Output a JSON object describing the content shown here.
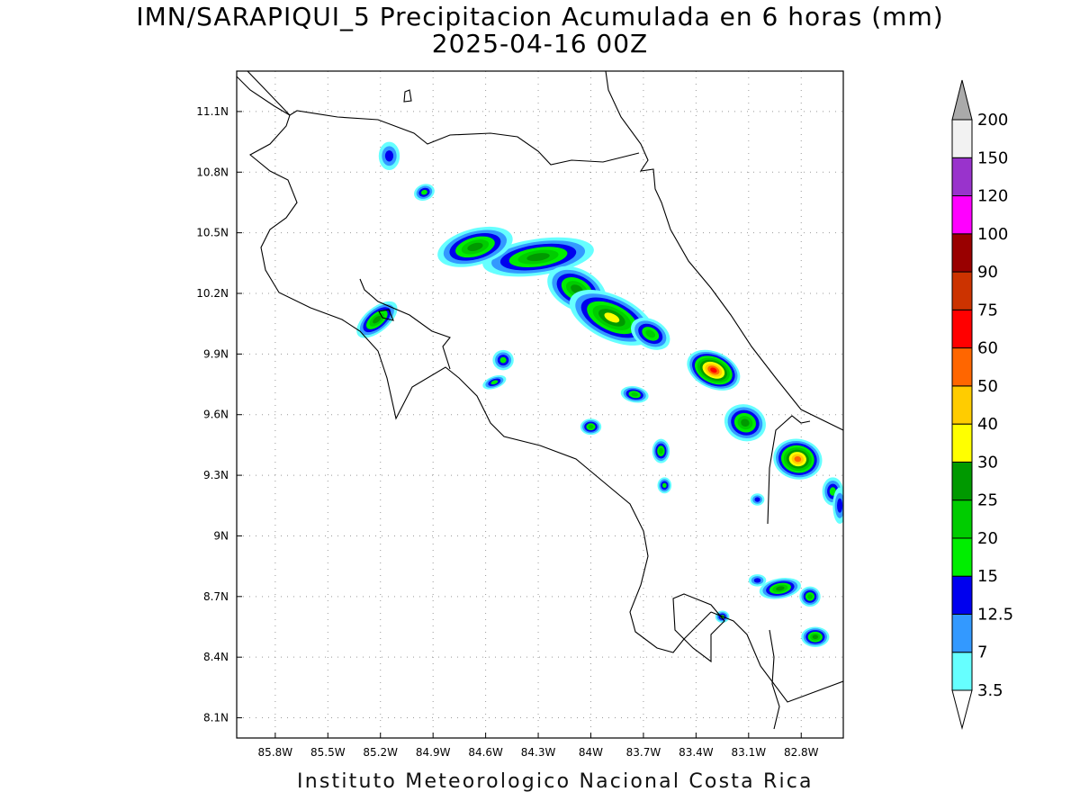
{
  "title": {
    "line1": "IMN/SARAPIQUI_5 Precipitacion Acumulada en 6 horas (mm)",
    "line2": "2025-04-16 00Z"
  },
  "footer": "Instituto Meteorologico Nacional Costa Rica",
  "map": {
    "lon_range": [
      -86.02,
      -82.56
    ],
    "lat_range": [
      8.0,
      11.3
    ],
    "lon_ticks": [
      {
        "value": -85.8,
        "label": "85.8W"
      },
      {
        "value": -85.5,
        "label": "85.5W"
      },
      {
        "value": -85.2,
        "label": "85.2W"
      },
      {
        "value": -84.9,
        "label": "84.9W"
      },
      {
        "value": -84.6,
        "label": "84.6W"
      },
      {
        "value": -84.3,
        "label": "84.3W"
      },
      {
        "value": -84.0,
        "label": "84W"
      },
      {
        "value": -83.7,
        "label": "83.7W"
      },
      {
        "value": -83.4,
        "label": "83.4W"
      },
      {
        "value": -83.1,
        "label": "83.1W"
      },
      {
        "value": -82.8,
        "label": "82.8W"
      }
    ],
    "lat_ticks": [
      {
        "value": 11.1,
        "label": "11.1N"
      },
      {
        "value": 10.8,
        "label": "10.8N"
      },
      {
        "value": 10.5,
        "label": "10.5N"
      },
      {
        "value": 10.2,
        "label": "10.2N"
      },
      {
        "value": 9.9,
        "label": "9.9N"
      },
      {
        "value": 9.6,
        "label": "9.6N"
      },
      {
        "value": 9.3,
        "label": "9.3N"
      },
      {
        "value": 9.0,
        "label": "9N"
      },
      {
        "value": 8.7,
        "label": "8.7N"
      },
      {
        "value": 8.4,
        "label": "8.4N"
      },
      {
        "value": 8.1,
        "label": "8.1N"
      }
    ],
    "grid": "dotted"
  },
  "colorbar": {
    "labels": [
      "3.5",
      "7",
      "12.5",
      "15",
      "20",
      "25",
      "30",
      "40",
      "50",
      "60",
      "75",
      "90",
      "100",
      "120",
      "150",
      "200"
    ],
    "colors": [
      "#66ffff",
      "#3399ff",
      "#0000ee",
      "#00ee00",
      "#00cc00",
      "#009900",
      "#ffff00",
      "#ffcc00",
      "#ff6600",
      "#ff0000",
      "#cc3300",
      "#990000",
      "#ff00ff",
      "#9933cc",
      "#f2f2f2",
      "#aaaaaa"
    ]
  },
  "precip_cells": [
    {
      "lon": -84.3,
      "lat": 10.38,
      "rx": 0.32,
      "ry": 0.09,
      "rot": -8,
      "lvl": 5
    },
    {
      "lon": -84.66,
      "lat": 10.43,
      "rx": 0.22,
      "ry": 0.09,
      "rot": -15,
      "lvl": 5
    },
    {
      "lon": -84.08,
      "lat": 10.22,
      "rx": 0.18,
      "ry": 0.1,
      "rot": 28,
      "lvl": 5
    },
    {
      "lon": -83.88,
      "lat": 10.08,
      "rx": 0.26,
      "ry": 0.11,
      "rot": 25,
      "lvl": 6
    },
    {
      "lon": -83.66,
      "lat": 10.0,
      "rx": 0.12,
      "ry": 0.07,
      "rot": 30,
      "lvl": 4
    },
    {
      "lon": -83.3,
      "lat": 9.82,
      "rx": 0.16,
      "ry": 0.09,
      "rot": 25,
      "lvl": 9
    },
    {
      "lon": -83.12,
      "lat": 9.56,
      "rx": 0.12,
      "ry": 0.09,
      "rot": 20,
      "lvl": 5
    },
    {
      "lon": -82.82,
      "lat": 9.38,
      "rx": 0.14,
      "ry": 0.1,
      "rot": 10,
      "lvl": 8
    },
    {
      "lon": -85.22,
      "lat": 10.07,
      "rx": 0.14,
      "ry": 0.06,
      "rot": -40,
      "lvl": 5
    },
    {
      "lon": -83.75,
      "lat": 9.7,
      "rx": 0.08,
      "ry": 0.04,
      "rot": 10,
      "lvl": 4
    },
    {
      "lon": -84.0,
      "lat": 9.54,
      "rx": 0.06,
      "ry": 0.04,
      "rot": 0,
      "lvl": 4
    },
    {
      "lon": -83.6,
      "lat": 9.42,
      "rx": 0.05,
      "ry": 0.06,
      "rot": 0,
      "lvl": 4
    },
    {
      "lon": -82.72,
      "lat": 8.5,
      "rx": 0.08,
      "ry": 0.05,
      "rot": 0,
      "lvl": 5
    },
    {
      "lon": -82.92,
      "lat": 8.74,
      "rx": 0.12,
      "ry": 0.05,
      "rot": -10,
      "lvl": 5
    },
    {
      "lon": -82.75,
      "lat": 8.7,
      "rx": 0.06,
      "ry": 0.05,
      "rot": 0,
      "lvl": 4
    },
    {
      "lon": -84.5,
      "lat": 9.87,
      "rx": 0.06,
      "ry": 0.05,
      "rot": 0,
      "lvl": 3
    },
    {
      "lon": -84.55,
      "lat": 9.76,
      "rx": 0.07,
      "ry": 0.03,
      "rot": -20,
      "lvl": 3
    },
    {
      "lon": -85.15,
      "lat": 10.88,
      "rx": 0.06,
      "ry": 0.07,
      "rot": 0,
      "lvl": 2
    },
    {
      "lon": -84.95,
      "lat": 10.7,
      "rx": 0.06,
      "ry": 0.04,
      "rot": -20,
      "lvl": 3
    },
    {
      "lon": -82.62,
      "lat": 9.22,
      "rx": 0.06,
      "ry": 0.07,
      "rot": 0,
      "lvl": 3
    },
    {
      "lon": -82.58,
      "lat": 9.15,
      "rx": 0.04,
      "ry": 0.09,
      "rot": 0,
      "lvl": 2
    },
    {
      "lon": -83.58,
      "lat": 9.25,
      "rx": 0.04,
      "ry": 0.04,
      "rot": 0,
      "lvl": 3
    },
    {
      "lon": -83.05,
      "lat": 9.18,
      "rx": 0.04,
      "ry": 0.03,
      "rot": 0,
      "lvl": 2
    },
    {
      "lon": -83.25,
      "lat": 8.6,
      "rx": 0.04,
      "ry": 0.03,
      "rot": 0,
      "lvl": 3
    },
    {
      "lon": -83.05,
      "lat": 8.78,
      "rx": 0.05,
      "ry": 0.03,
      "rot": 0,
      "lvl": 2
    }
  ]
}
